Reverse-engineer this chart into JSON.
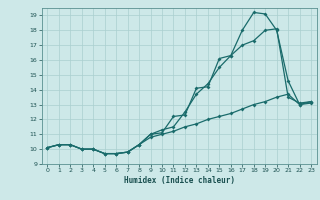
{
  "xlabel": "Humidex (Indice chaleur)",
  "bg_color": "#cde8e8",
  "grid_color": "#aacfcf",
  "line_color": "#1a6b6b",
  "xlim": [
    -0.5,
    23.5
  ],
  "ylim": [
    9,
    19.5
  ],
  "yticks": [
    9,
    10,
    11,
    12,
    13,
    14,
    15,
    16,
    17,
    18,
    19
  ],
  "xticks": [
    0,
    1,
    2,
    3,
    4,
    5,
    6,
    7,
    8,
    9,
    10,
    11,
    12,
    13,
    14,
    15,
    16,
    17,
    18,
    19,
    20,
    21,
    22,
    23
  ],
  "line1_x": [
    0,
    1,
    2,
    3,
    4,
    5,
    6,
    7,
    8,
    9,
    10,
    11,
    12,
    13,
    14,
    15,
    16,
    17,
    18,
    19,
    20,
    21,
    22,
    23
  ],
  "line1_y": [
    10.1,
    10.3,
    10.3,
    10.0,
    10.0,
    9.7,
    9.7,
    9.8,
    10.3,
    11.0,
    11.1,
    12.2,
    12.3,
    14.1,
    14.2,
    16.1,
    16.3,
    18.0,
    19.2,
    19.1,
    18.0,
    14.6,
    13.0,
    13.1
  ],
  "line2_x": [
    0,
    1,
    2,
    3,
    4,
    5,
    6,
    7,
    8,
    9,
    10,
    11,
    12,
    13,
    14,
    15,
    16,
    17,
    18,
    19,
    20,
    21,
    22,
    23
  ],
  "line2_y": [
    10.1,
    10.3,
    10.3,
    10.0,
    10.0,
    9.7,
    9.7,
    9.8,
    10.3,
    11.0,
    11.3,
    11.5,
    12.5,
    13.7,
    14.4,
    15.5,
    16.3,
    17.0,
    17.3,
    18.0,
    18.1,
    13.5,
    13.1,
    13.2
  ],
  "line3_x": [
    0,
    1,
    2,
    3,
    4,
    5,
    6,
    7,
    8,
    9,
    10,
    11,
    12,
    13,
    14,
    15,
    16,
    17,
    18,
    19,
    20,
    21,
    22,
    23
  ],
  "line3_y": [
    10.1,
    10.3,
    10.3,
    10.0,
    10.0,
    9.7,
    9.7,
    9.8,
    10.3,
    10.8,
    11.0,
    11.2,
    11.5,
    11.7,
    12.0,
    12.2,
    12.4,
    12.7,
    13.0,
    13.2,
    13.5,
    13.7,
    13.0,
    13.2
  ]
}
